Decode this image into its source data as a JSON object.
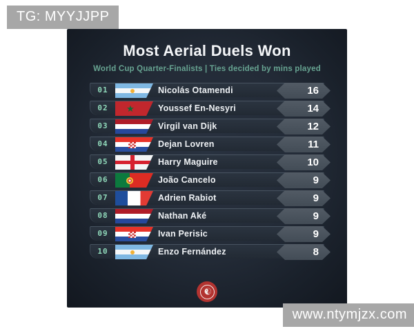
{
  "overlays": {
    "telegram_badge": "TG: MYYJJPP",
    "website_badge": "www.ntymjzx.com"
  },
  "card": {
    "title": "Most Aerial Duels Won",
    "subtitle": "World Cup Quarter-Finalists | Ties decided by mins played",
    "logo_glyph": "☯",
    "rows": [
      {
        "rank": "01",
        "flag": "argentina",
        "player": "Nicolás Otamendi",
        "value": "16"
      },
      {
        "rank": "02",
        "flag": "morocco",
        "player": "Youssef En-Nesyri",
        "value": "14"
      },
      {
        "rank": "03",
        "flag": "netherlands",
        "player": "Virgil van Dijk",
        "value": "12"
      },
      {
        "rank": "04",
        "flag": "croatia",
        "player": "Dejan Lovren",
        "value": "11"
      },
      {
        "rank": "05",
        "flag": "england",
        "player": "Harry Maguire",
        "value": "10"
      },
      {
        "rank": "06",
        "flag": "portugal",
        "player": "João Cancelo",
        "value": "9"
      },
      {
        "rank": "07",
        "flag": "france",
        "player": "Adrien Rabiot",
        "value": "9"
      },
      {
        "rank": "08",
        "flag": "netherlands",
        "player": "Nathan Aké",
        "value": "9"
      },
      {
        "rank": "09",
        "flag": "croatia",
        "player": "Ivan Perisic",
        "value": "9"
      },
      {
        "rank": "10",
        "flag": "argentina",
        "player": "Enzo Fernández",
        "value": "8"
      }
    ]
  },
  "colors": {
    "subtitle_teal": "#67a391",
    "rank_green": "#90d9ba",
    "card_bg": "#1f2731",
    "row_bg": "#28313d",
    "value_badge_bg": "#4a535e",
    "logo_red": "#b23330",
    "watermark_gray": "#a7a7a7"
  },
  "chart_data": {
    "type": "table",
    "title": "Most Aerial Duels Won",
    "subtitle": "World Cup Quarter-Finalists | Ties decided by mins played",
    "columns": [
      "rank",
      "nationality",
      "player",
      "aerial_duels_won"
    ],
    "rows": [
      [
        "01",
        "Argentina",
        "Nicolás Otamendi",
        16
      ],
      [
        "02",
        "Morocco",
        "Youssef En-Nesyri",
        14
      ],
      [
        "03",
        "Netherlands",
        "Virgil van Dijk",
        12
      ],
      [
        "04",
        "Croatia",
        "Dejan Lovren",
        11
      ],
      [
        "05",
        "England",
        "Harry Maguire",
        10
      ],
      [
        "06",
        "Portugal",
        "João Cancelo",
        9
      ],
      [
        "07",
        "France",
        "Adrien Rabiot",
        9
      ],
      [
        "08",
        "Netherlands",
        "Nathan Aké",
        9
      ],
      [
        "09",
        "Croatia",
        "Ivan Perisic",
        9
      ],
      [
        "10",
        "Argentina",
        "Enzo Fernández",
        8
      ]
    ]
  }
}
